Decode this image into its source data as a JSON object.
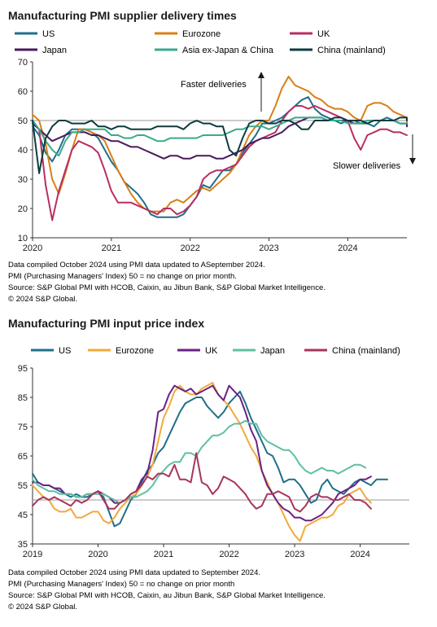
{
  "chart_data": [
    {
      "type": "line",
      "title": "Manufacturing PMI supplier delivery times",
      "ylim": [
        10,
        70
      ],
      "yticks": [
        10,
        20,
        30,
        40,
        50,
        60,
        70
      ],
      "xticks": [
        "2020",
        "2021",
        "2022",
        "2023",
        "2024"
      ],
      "reference_line": 50,
      "annotations": [
        "Faster deliveries",
        "Slower deliveries"
      ],
      "series": [
        {
          "name": "US",
          "color": "#1f6f8b",
          "start": 2020.0,
          "step": 0.0833,
          "values": [
            48,
            45,
            39,
            36,
            40,
            45,
            47,
            47,
            47,
            46,
            44,
            40,
            36,
            33,
            29,
            27,
            25,
            22,
            18,
            17,
            17,
            17,
            17,
            18,
            21,
            24,
            28,
            27,
            30,
            33,
            33,
            35,
            39,
            42,
            45,
            49,
            49,
            50,
            51,
            53,
            55,
            57,
            58,
            54,
            52,
            51,
            50,
            49,
            50,
            50,
            49,
            49,
            48,
            50,
            51,
            50,
            49,
            49,
            48,
            50,
            51,
            51
          ]
        },
        {
          "name": "Eurozone",
          "color": "#d97f17",
          "start": 2020.0,
          "step": 0.0833,
          "values": [
            52,
            50,
            42,
            30,
            25,
            32,
            40,
            47,
            47,
            46,
            45,
            43,
            38,
            33,
            29,
            25,
            22,
            20,
            19,
            19,
            19,
            22,
            23,
            22,
            24,
            26,
            27,
            26,
            28,
            30,
            32,
            35,
            40,
            45,
            48,
            50,
            50,
            55,
            61,
            65,
            62,
            61,
            60,
            58,
            57,
            55,
            54,
            54,
            53,
            51,
            50,
            55,
            56,
            56,
            55,
            53,
            52,
            51,
            50,
            50,
            49,
            49
          ]
        },
        {
          "name": "UK",
          "color": "#b92e63",
          "start": 2020.0,
          "step": 0.0833,
          "values": [
            50,
            47,
            28,
            16,
            26,
            33,
            40,
            43,
            42,
            41,
            39,
            33,
            26,
            22,
            22,
            22,
            21,
            20,
            19,
            18,
            20,
            20,
            18,
            19,
            21,
            24,
            30,
            32,
            33,
            33,
            34,
            35,
            38,
            41,
            43,
            44,
            45,
            46,
            50,
            53,
            55,
            55,
            54,
            55,
            54,
            53,
            52,
            51,
            50,
            44,
            40,
            45,
            46,
            47,
            47,
            46,
            46,
            45,
            45,
            45
          ]
        },
        {
          "name": "Japan",
          "color": "#4a1a5c",
          "start": 2020.0,
          "step": 0.0833,
          "values": [
            49,
            47,
            45,
            43,
            44,
            45,
            46,
            46,
            46,
            45,
            45,
            44,
            43,
            43,
            42,
            41,
            41,
            40,
            39,
            38,
            37,
            38,
            38,
            37,
            37,
            38,
            38,
            38,
            37,
            37,
            38,
            39,
            40,
            42,
            43,
            44,
            44,
            45,
            46,
            48,
            49,
            50,
            51,
            51,
            51,
            50,
            50,
            50,
            50,
            49,
            49,
            50,
            50,
            50,
            50,
            50,
            49,
            49,
            49,
            49,
            49,
            48
          ]
        },
        {
          "name": "Asia ex-Japan & China",
          "color": "#3aaa8c",
          "start": 2020.0,
          "step": 0.0833,
          "values": [
            50,
            47,
            43,
            40,
            38,
            43,
            46,
            46,
            47,
            47,
            47,
            47,
            45,
            45,
            44,
            44,
            45,
            45,
            44,
            43,
            43,
            44,
            44,
            44,
            44,
            44,
            45,
            45,
            45,
            45,
            46,
            47,
            47,
            48,
            48,
            48,
            47,
            48,
            49,
            50,
            51,
            51,
            51,
            51,
            51,
            50,
            50,
            50,
            49,
            49,
            49,
            50,
            50,
            50,
            50,
            50,
            49,
            49,
            49,
            49,
            49,
            49
          ]
        },
        {
          "name": "China (mainland)",
          "color": "#0e3b3f",
          "start": 2020.0,
          "step": 0.0833,
          "values": [
            50,
            32,
            44,
            48,
            50,
            50,
            49,
            49,
            49,
            50,
            48,
            48,
            47,
            48,
            48,
            47,
            47,
            47,
            47,
            48,
            48,
            48,
            48,
            47,
            49,
            50,
            49,
            49,
            48,
            48,
            40,
            38,
            44,
            49,
            50,
            50,
            49,
            49,
            50,
            50,
            49,
            47,
            47,
            50,
            50,
            50,
            51,
            51,
            50,
            50,
            50,
            49,
            50,
            50,
            50,
            50,
            51,
            51,
            50,
            50,
            50,
            50
          ]
        }
      ],
      "footnotes": [
        "Data compiled October 2024 using PMI data updated to ASeptember 2024.",
        "PMI (Purchasing Managers' Index) 50 = no change on prior month.",
        "Source: S&P Global PMI with HCOB, Caixin, au Jibun Bank, S&P Global Market Intelligence.",
        "© 2024 S&P Global."
      ]
    },
    {
      "type": "line",
      "title": "Manufacturing PMI input price index",
      "ylim": [
        35,
        95
      ],
      "yticks": [
        35,
        45,
        55,
        65,
        75,
        85,
        95
      ],
      "xticks": [
        "2019",
        "2020",
        "2021",
        "2022",
        "2023",
        "2024"
      ],
      "reference_line": 50,
      "series": [
        {
          "name": "US",
          "color": "#1f6f8b",
          "start": 2019.0,
          "step": 0.0833,
          "values": [
            59,
            56,
            55,
            55,
            54,
            53,
            52,
            51,
            52,
            51,
            51,
            52,
            53,
            51,
            46,
            41,
            42,
            46,
            50,
            52,
            56,
            60,
            62,
            66,
            68,
            72,
            76,
            80,
            83,
            84,
            85,
            85,
            82,
            80,
            78,
            80,
            83,
            85,
            87,
            83,
            78,
            74,
            70,
            66,
            65,
            61,
            56,
            57,
            57,
            55,
            52,
            49,
            50,
            55,
            57,
            54,
            53,
            52,
            54,
            56,
            57,
            56,
            55,
            57,
            57,
            57
          ]
        },
        {
          "name": "Eurozone",
          "color": "#f2a93b",
          "start": 2019.0,
          "step": 0.0833,
          "values": [
            55,
            53,
            51,
            50,
            47,
            46,
            46,
            47,
            44,
            44,
            45,
            46,
            46,
            43,
            42,
            44,
            47,
            49,
            51,
            52,
            55,
            58,
            62,
            70,
            78,
            82,
            87,
            89,
            87,
            86,
            86,
            88,
            89,
            90,
            86,
            84,
            82,
            79,
            76,
            72,
            68,
            65,
            60,
            56,
            52,
            49,
            45,
            41,
            38,
            36,
            41,
            42,
            43,
            44,
            44,
            45,
            48,
            49,
            52,
            53,
            54,
            51,
            49
          ]
        },
        {
          "name": "UK",
          "color": "#6a2182",
          "start": 2019.0,
          "step": 0.0833,
          "values": [
            56,
            56,
            55,
            55,
            54,
            54,
            52,
            52,
            51,
            51,
            52,
            52,
            53,
            52,
            51,
            49,
            49,
            50,
            52,
            53,
            57,
            59,
            67,
            80,
            81,
            86,
            89,
            88,
            87,
            88,
            86,
            87,
            88,
            89,
            86,
            84,
            89,
            87,
            85,
            80,
            74,
            70,
            60,
            55,
            52,
            49,
            47,
            46,
            44,
            44,
            43,
            43,
            44,
            45,
            47,
            49,
            52,
            53,
            54,
            55,
            57,
            57,
            58
          ]
        },
        {
          "name": "Japan",
          "color": "#5ec0a0",
          "start": 2019.0,
          "step": 0.0833,
          "values": [
            57,
            55,
            54,
            53,
            53,
            52,
            52,
            52,
            51,
            51,
            52,
            52,
            52,
            52,
            51,
            50,
            49,
            50,
            51,
            51,
            52,
            53,
            55,
            58,
            60,
            62,
            63,
            63,
            66,
            66,
            65,
            68,
            70,
            72,
            72,
            73,
            75,
            76,
            76,
            77,
            76,
            76,
            72,
            70,
            69,
            68,
            67,
            67,
            65,
            62,
            60,
            59,
            60,
            61,
            60,
            60,
            59,
            60,
            61,
            62,
            62,
            61
          ]
        },
        {
          "name": "China (mainland)",
          "color": "#a8345e",
          "start": 2019.0,
          "step": 0.0833,
          "values": [
            48,
            50,
            51,
            50,
            51,
            50,
            49,
            48,
            50,
            49,
            50,
            52,
            53,
            50,
            47,
            47,
            49,
            50,
            52,
            53,
            55,
            58,
            57,
            59,
            59,
            58,
            62,
            57,
            57,
            56,
            66,
            56,
            55,
            52,
            54,
            58,
            57,
            56,
            54,
            52,
            49,
            47,
            48,
            52,
            52,
            53,
            52,
            51,
            47,
            46,
            48,
            51,
            52,
            51,
            51,
            50,
            50,
            51,
            52,
            50,
            50,
            49,
            47
          ]
        }
      ],
      "footnotes": [
        "Data compiled October 2024 using PMI data updated to September 2024.",
        "PMI (Purchasing Managers' Index) 50 = no change on prior month",
        "Source: S&P Global PMI with HCOB, Caixin, au Jibun Bank, S&P Global Market Intelligence.",
        "© 2024 S&P Global."
      ]
    }
  ]
}
